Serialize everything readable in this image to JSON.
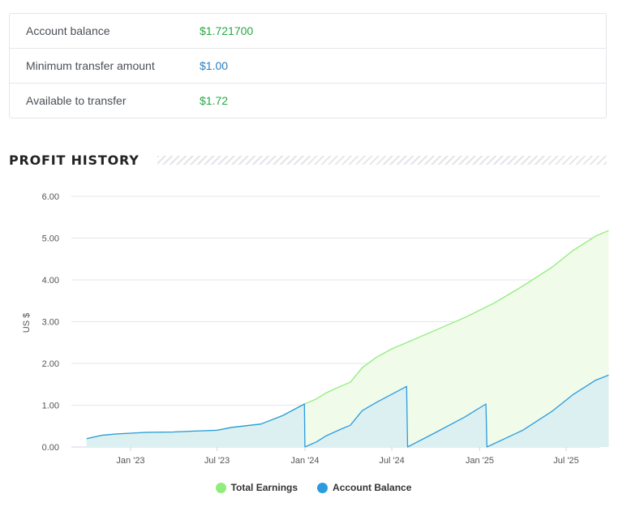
{
  "account": {
    "rows": [
      {
        "label": "Account balance",
        "value": "$1.721700",
        "color": "#27a844"
      },
      {
        "label": "Minimum transfer amount",
        "value": "$1.00",
        "color": "#2a7ec2"
      },
      {
        "label": "Available to transfer",
        "value": "$1.72",
        "color": "#27a844"
      }
    ]
  },
  "profit_history": {
    "title": "PROFIT HISTORY"
  },
  "chart_data": {
    "type": "area",
    "ylabel": "US $",
    "ylim": [
      0,
      6
    ],
    "yticks": [
      "0.00",
      "1.00",
      "2.00",
      "3.00",
      "4.00",
      "5.00",
      "6.00"
    ],
    "x_tick_labels": [
      "Jan '23",
      "Jul '23",
      "Jan '24",
      "Jul '24",
      "Jan '25",
      "Jul '25"
    ],
    "x_tick_dates": [
      "2023-01-01",
      "2023-07-01",
      "2024-01-01",
      "2024-07-01",
      "2025-01-01",
      "2025-07-01"
    ],
    "grid": true,
    "legend_position": "bottom",
    "series": [
      {
        "name": "Total Earnings",
        "color": "#90ed7d",
        "fill": "#f0fbe9",
        "points": [
          [
            "2022-10-01",
            0.2
          ],
          [
            "2022-11-01",
            0.28
          ],
          [
            "2022-12-01",
            0.31
          ],
          [
            "2023-02-01",
            0.35
          ],
          [
            "2023-04-01",
            0.36
          ],
          [
            "2023-05-15",
            0.38
          ],
          [
            "2023-07-01",
            0.4
          ],
          [
            "2023-08-01",
            0.47
          ],
          [
            "2023-10-01",
            0.55
          ],
          [
            "2023-11-15",
            0.75
          ],
          [
            "2023-12-31",
            1.03
          ],
          [
            "2024-01-25",
            1.15
          ],
          [
            "2024-02-15",
            1.3
          ],
          [
            "2024-03-15",
            1.45
          ],
          [
            "2024-04-05",
            1.55
          ],
          [
            "2024-04-30",
            1.9
          ],
          [
            "2024-05-30",
            2.15
          ],
          [
            "2024-07-01",
            2.35
          ],
          [
            "2024-08-01",
            2.5
          ],
          [
            "2024-10-01",
            2.8
          ],
          [
            "2024-12-01",
            3.1
          ],
          [
            "2025-02-01",
            3.45
          ],
          [
            "2025-04-01",
            3.85
          ],
          [
            "2025-06-01",
            4.3
          ],
          [
            "2025-07-15",
            4.7
          ],
          [
            "2025-09-01",
            5.05
          ],
          [
            "2025-09-28",
            5.18
          ]
        ]
      },
      {
        "name": "Account Balance",
        "color": "#2b9be0",
        "fill": "#dcf0f1",
        "points": [
          [
            "2022-10-01",
            0.2
          ],
          [
            "2022-11-01",
            0.28
          ],
          [
            "2022-12-01",
            0.31
          ],
          [
            "2023-02-01",
            0.35
          ],
          [
            "2023-04-01",
            0.36
          ],
          [
            "2023-05-15",
            0.38
          ],
          [
            "2023-07-01",
            0.4
          ],
          [
            "2023-08-01",
            0.47
          ],
          [
            "2023-10-01",
            0.55
          ],
          [
            "2023-11-15",
            0.75
          ],
          [
            "2023-12-31",
            1.03
          ],
          [
            "2024-01-01",
            0.0
          ],
          [
            "2024-01-25",
            0.12
          ],
          [
            "2024-02-15",
            0.27
          ],
          [
            "2024-03-15",
            0.42
          ],
          [
            "2024-04-05",
            0.52
          ],
          [
            "2024-04-30",
            0.87
          ],
          [
            "2024-05-30",
            1.07
          ],
          [
            "2024-08-01",
            1.45
          ],
          [
            "2024-08-03",
            0.0
          ],
          [
            "2024-10-01",
            0.35
          ],
          [
            "2024-12-01",
            0.72
          ],
          [
            "2025-01-14",
            1.03
          ],
          [
            "2025-01-16",
            0.0
          ],
          [
            "2025-04-01",
            0.4
          ],
          [
            "2025-06-01",
            0.85
          ],
          [
            "2025-07-15",
            1.25
          ],
          [
            "2025-09-01",
            1.6
          ],
          [
            "2025-09-28",
            1.72
          ]
        ]
      }
    ]
  }
}
